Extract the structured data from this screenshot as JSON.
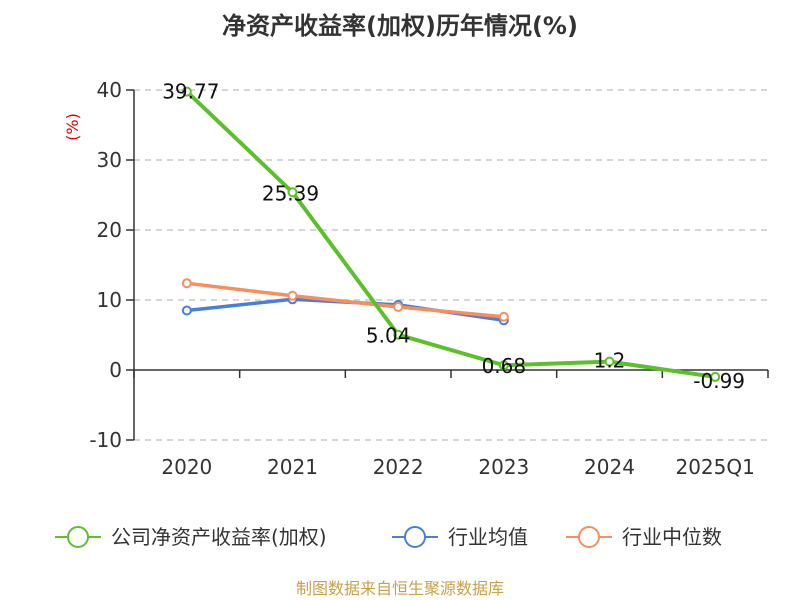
{
  "chart_data": {
    "type": "line",
    "title": "净资产收益率(加权)历年情况(%)",
    "ylabel": "(%)",
    "xlabel": "",
    "categories": [
      "2020",
      "2021",
      "2022",
      "2023",
      "2024",
      "2025Q1"
    ],
    "ylim": [
      -10,
      40
    ],
    "yticks": [
      40,
      30,
      20,
      10,
      0,
      -10
    ],
    "grid": true,
    "legend_position": "bottom",
    "series": [
      {
        "name": "公司净资产收益率(加权)",
        "color": "#5cc02a",
        "values": [
          39.77,
          25.39,
          5.04,
          0.68,
          1.2,
          -0.99
        ],
        "labels": [
          "39.77",
          "25.39",
          "5.04",
          "0.68",
          "1.2",
          "-0.99"
        ]
      },
      {
        "name": "行业均值",
        "color": "#4a7fd8",
        "values": [
          8.5,
          10.1,
          9.3,
          7.1,
          null,
          null
        ]
      },
      {
        "name": "行业中位数",
        "color": "#f5905e",
        "values": [
          12.4,
          10.6,
          9.0,
          7.6,
          null,
          null
        ]
      }
    ],
    "source": "制图数据来自恒生聚源数据库"
  }
}
